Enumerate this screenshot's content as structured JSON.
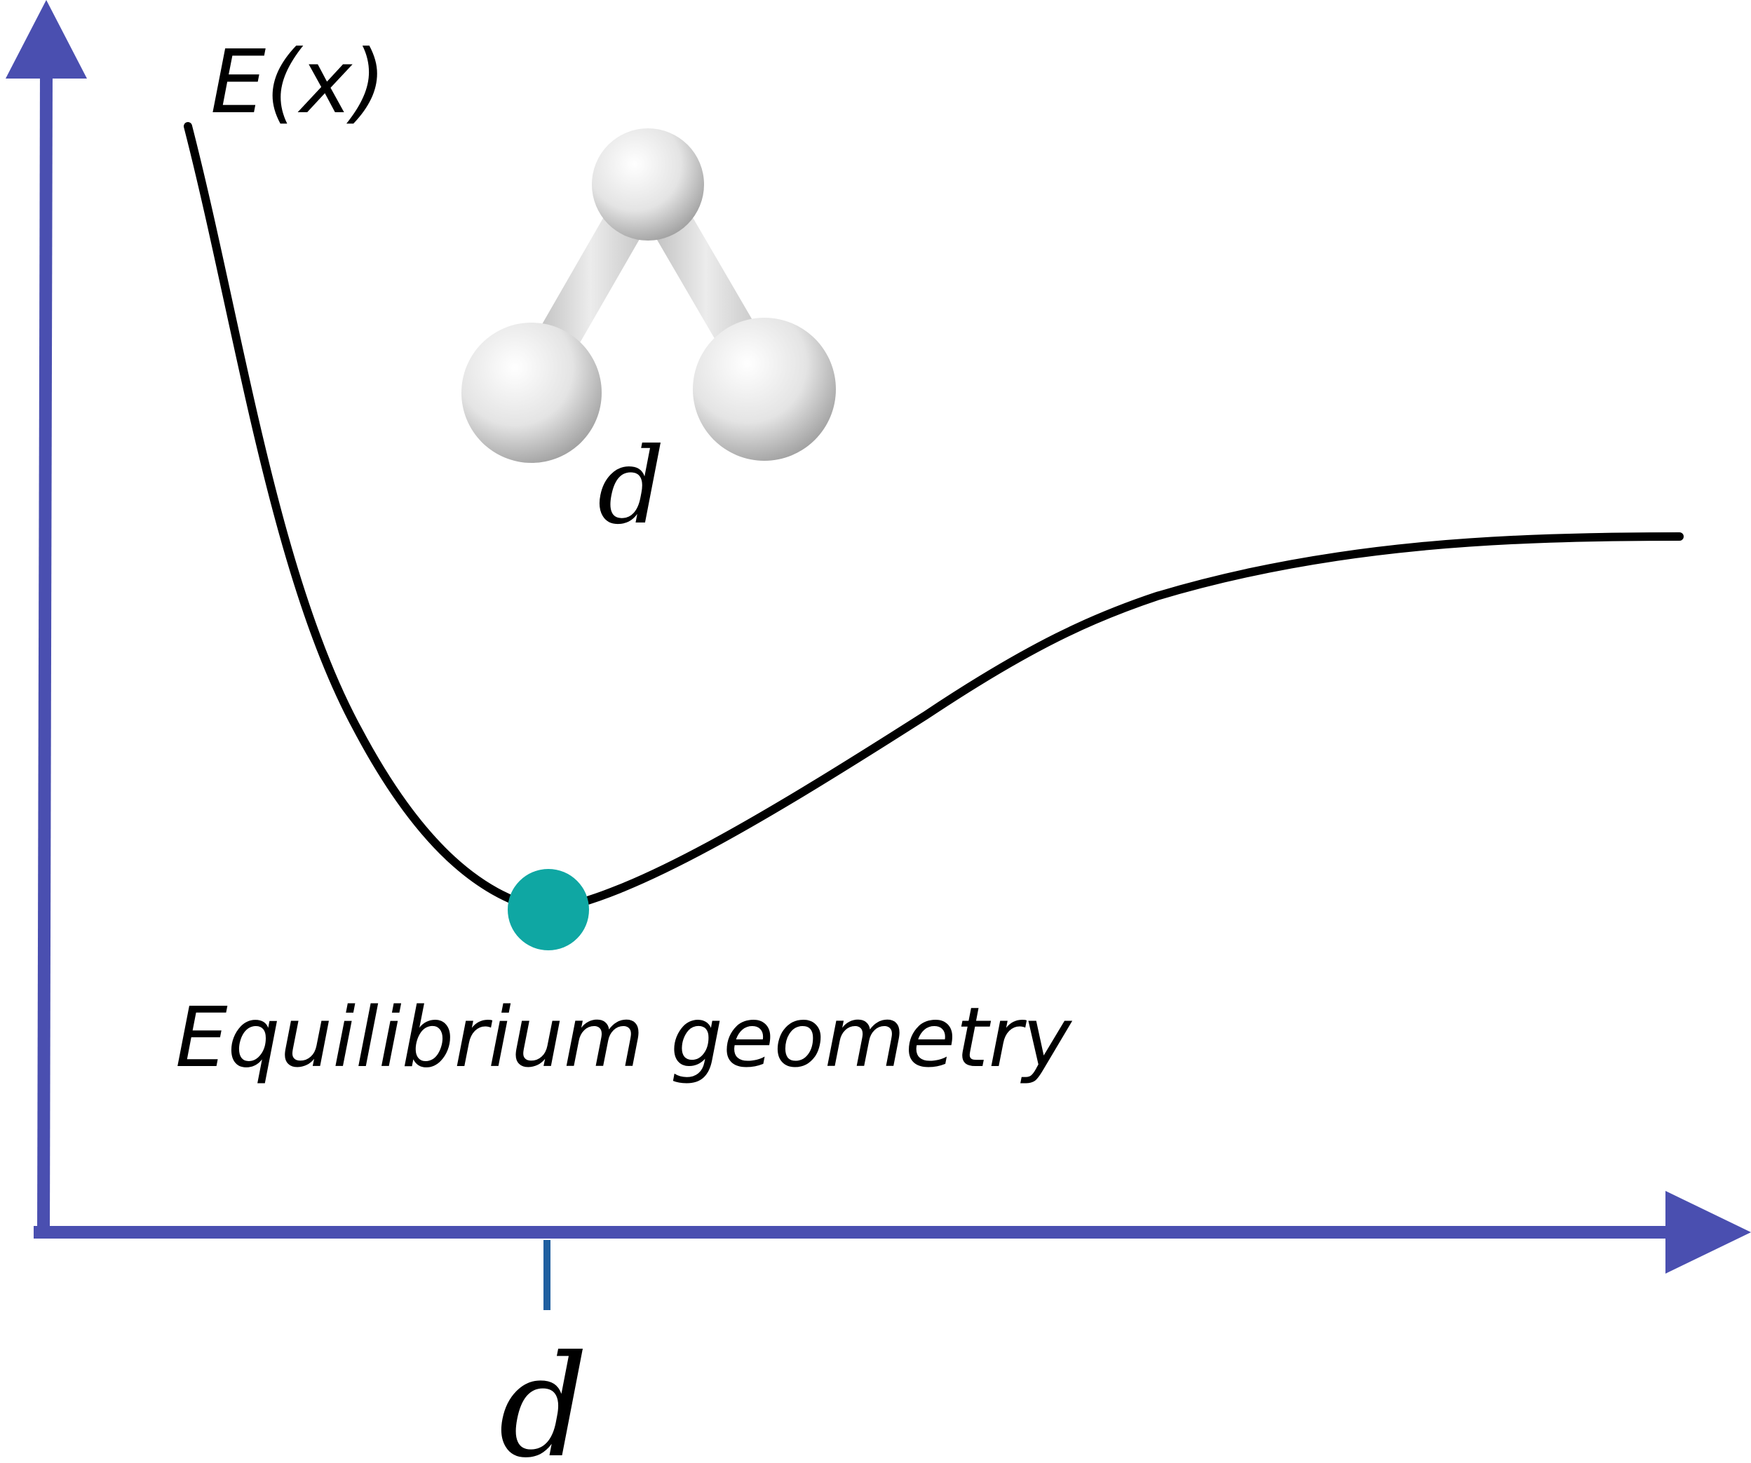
{
  "diagram": {
    "y_axis_label": "E(x)",
    "x_tick_label": "d",
    "molecule_bond_label": "d",
    "minimum_annotation": "Equilibrium geometry",
    "colors": {
      "axes": "#4a4fb0",
      "tick": "#1f5fa0",
      "curve": "#000000",
      "minimum_point": "#0fa7a3",
      "atom": "#e6e6e6"
    }
  }
}
